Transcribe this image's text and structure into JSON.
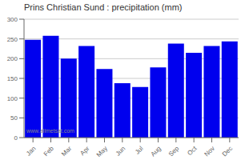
{
  "chart_data": {
    "type": "bar",
    "title": "Prins Christian Sund : precipitation (mm)",
    "categories": [
      "Jan",
      "Feb",
      "Mar",
      "Apr",
      "May",
      "Jun",
      "Jul",
      "Aug",
      "Sep",
      "Oct",
      "Nov",
      "Dec"
    ],
    "values": [
      248,
      258,
      200,
      232,
      174,
      138,
      128,
      178,
      238,
      215,
      232,
      244
    ],
    "color": "#0000EE",
    "ylim": [
      0,
      300
    ],
    "yticks": [
      0,
      50,
      100,
      150,
      200,
      250,
      300
    ],
    "grid": true,
    "annotations": [
      "www.allmetsat.com"
    ]
  }
}
